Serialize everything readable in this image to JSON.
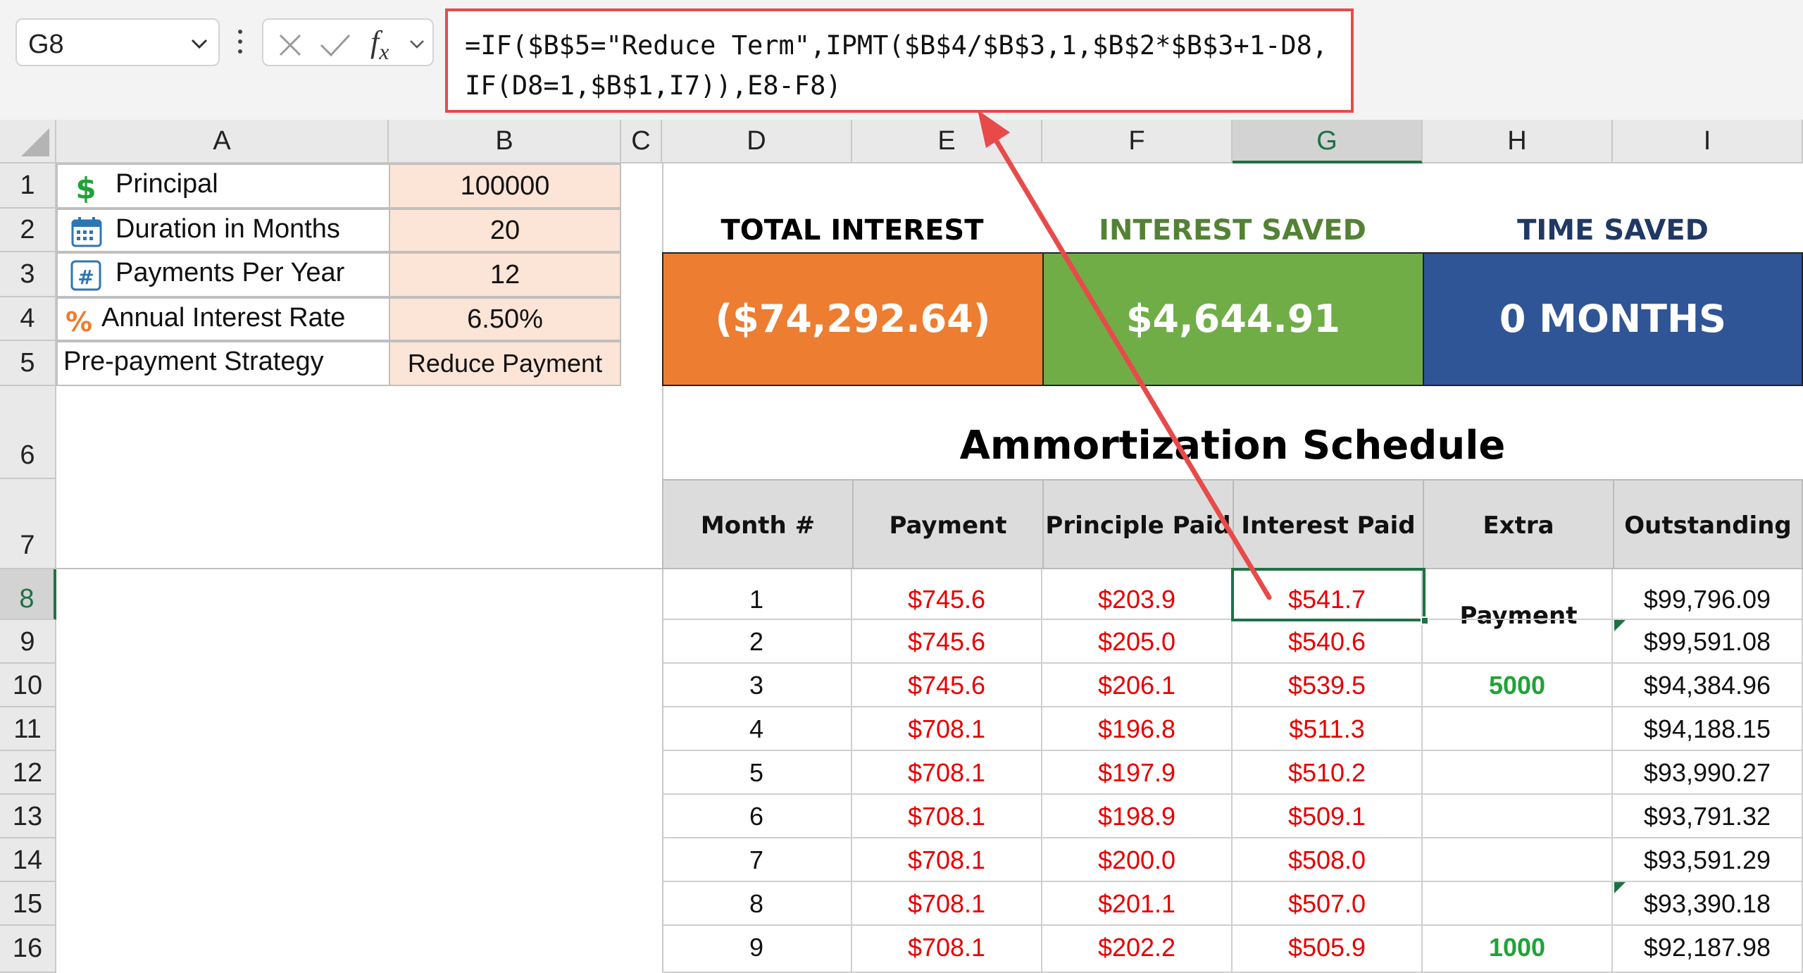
{
  "formula_bar": {
    "name_box": "G8",
    "formula_line1": "=IF($B$5=\"Reduce Term\",IPMT($B$4/$B$3,1,$B$2*$B$3+1-D8,",
    "formula_line2": "IF(D8=1,$B$1,I7)),E8-F8)"
  },
  "columns": [
    "A",
    "B",
    "C",
    "D",
    "E",
    "F",
    "G",
    "H",
    "I"
  ],
  "selected_column": "G",
  "rows": [
    "1",
    "2",
    "3",
    "4",
    "5",
    "6",
    "7",
    "8",
    "9",
    "10",
    "11",
    "12",
    "13",
    "14",
    "15",
    "16"
  ],
  "selected_row": "8",
  "inputs": [
    {
      "label": "Principal",
      "value": "100000",
      "icon": "dollar-icon"
    },
    {
      "label": "Duration in Months",
      "value": "20",
      "icon": "calendar-icon"
    },
    {
      "label": "Payments Per Year",
      "value": "12",
      "icon": "hash-icon"
    },
    {
      "label": "Annual Interest Rate",
      "value": "6.50%",
      "icon": "percent-icon"
    },
    {
      "label": "Pre-payment Strategy",
      "value": "Reduce Payment",
      "icon": ""
    }
  ],
  "kpis": [
    {
      "title": "TOTAL INTEREST",
      "value": "($74,292.64)",
      "title_color": "#000000",
      "bg": "#ed7d31"
    },
    {
      "title": "INTEREST SAVED",
      "value": "$4,644.91",
      "title_color": "#548235",
      "bg": "#70ad47"
    },
    {
      "title": "TIME SAVED",
      "value": "0 MONTHS",
      "title_color": "#1f3864",
      "bg": "#2f5597"
    }
  ],
  "schedule": {
    "title": "Ammortization Schedule",
    "headers": [
      "Month #",
      "Payment",
      "Principle Paid",
      "Interest Paid",
      "Extra Payment",
      "Outstanding"
    ],
    "rows": [
      [
        "1",
        "$745.6",
        "$203.9",
        "$541.7",
        "",
        "$99,796.09"
      ],
      [
        "2",
        "$745.6",
        "$205.0",
        "$540.6",
        "",
        "$99,591.08"
      ],
      [
        "3",
        "$745.6",
        "$206.1",
        "$539.5",
        "5000",
        "$94,384.96"
      ],
      [
        "4",
        "$708.1",
        "$196.8",
        "$511.3",
        "",
        "$94,188.15"
      ],
      [
        "5",
        "$708.1",
        "$197.9",
        "$510.2",
        "",
        "$93,990.27"
      ],
      [
        "6",
        "$708.1",
        "$198.9",
        "$509.1",
        "",
        "$93,791.32"
      ],
      [
        "7",
        "$708.1",
        "$200.0",
        "$508.0",
        "",
        "$93,591.29"
      ],
      [
        "8",
        "$708.1",
        "$201.1",
        "$507.0",
        "",
        "$93,390.18"
      ],
      [
        "9",
        "$708.1",
        "$202.2",
        "$505.9",
        "1000",
        "$92,187.98"
      ]
    ]
  },
  "colors": {
    "input_fill": "#fce4d6",
    "value_red": "#e60000",
    "extra_green": "#1fa336",
    "selection_green": "#1e7145",
    "annotation_red": "#e84a4a"
  }
}
